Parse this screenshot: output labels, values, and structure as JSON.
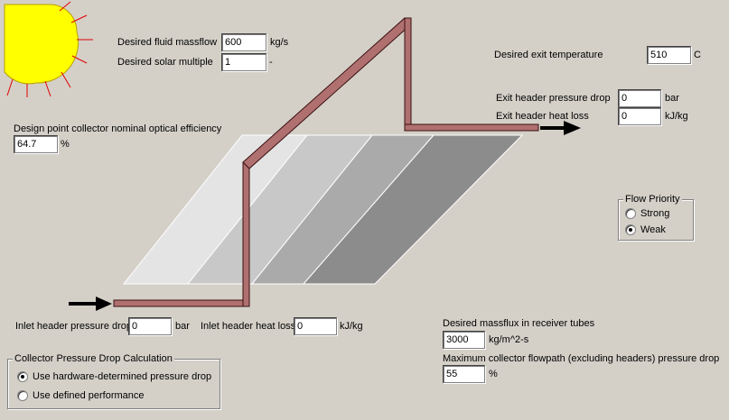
{
  "mass_flow": {
    "label": "Desired fluid massflow",
    "value": "600",
    "unit": "kg/s"
  },
  "solar_multiple": {
    "label": "Desired solar multiple",
    "value": "1",
    "unit": "-"
  },
  "exit_temp": {
    "label": "Desired exit temperature",
    "value": "510",
    "unit": "C"
  },
  "exit_header_dp": {
    "label": "Exit header pressure drop",
    "value": "0",
    "unit": "bar"
  },
  "exit_header_hl": {
    "label": "Exit header heat loss",
    "value": "0",
    "unit": "kJ/kg"
  },
  "optical_eff": {
    "label": "Design point collector nominal optical efficiency",
    "value": "64.7",
    "unit": "%"
  },
  "flow_priority": {
    "title": "Flow Priority",
    "options": [
      "Strong",
      "Weak"
    ],
    "selected": "Weak"
  },
  "inlet_header_dp": {
    "label": "Inlet header pressure drop",
    "value": "0",
    "unit": "bar"
  },
  "inlet_header_hl": {
    "label": "Inlet header heat loss",
    "value": "0",
    "unit": "kJ/kg"
  },
  "massflux": {
    "label": "Desired massflux in receiver tubes",
    "value": "3000",
    "unit": "kg/m^2-s"
  },
  "max_dp": {
    "label": "Maximum collector flowpath (excluding headers) pressure drop",
    "value": "55",
    "unit": "%"
  },
  "pressure_calc": {
    "title": "Collector Pressure Drop Calculation",
    "options": [
      "Use hardware-determined pressure drop",
      "Use defined performance"
    ],
    "selected": "Use hardware-determined pressure drop"
  },
  "colors": {
    "sun": "#ffff00",
    "sun_ray": "#e00000",
    "pipe": "#b07070",
    "pipe_edge": "#3a1010"
  },
  "icons": [
    "sun-icon",
    "inlet-arrow-icon",
    "outlet-arrow-icon"
  ]
}
